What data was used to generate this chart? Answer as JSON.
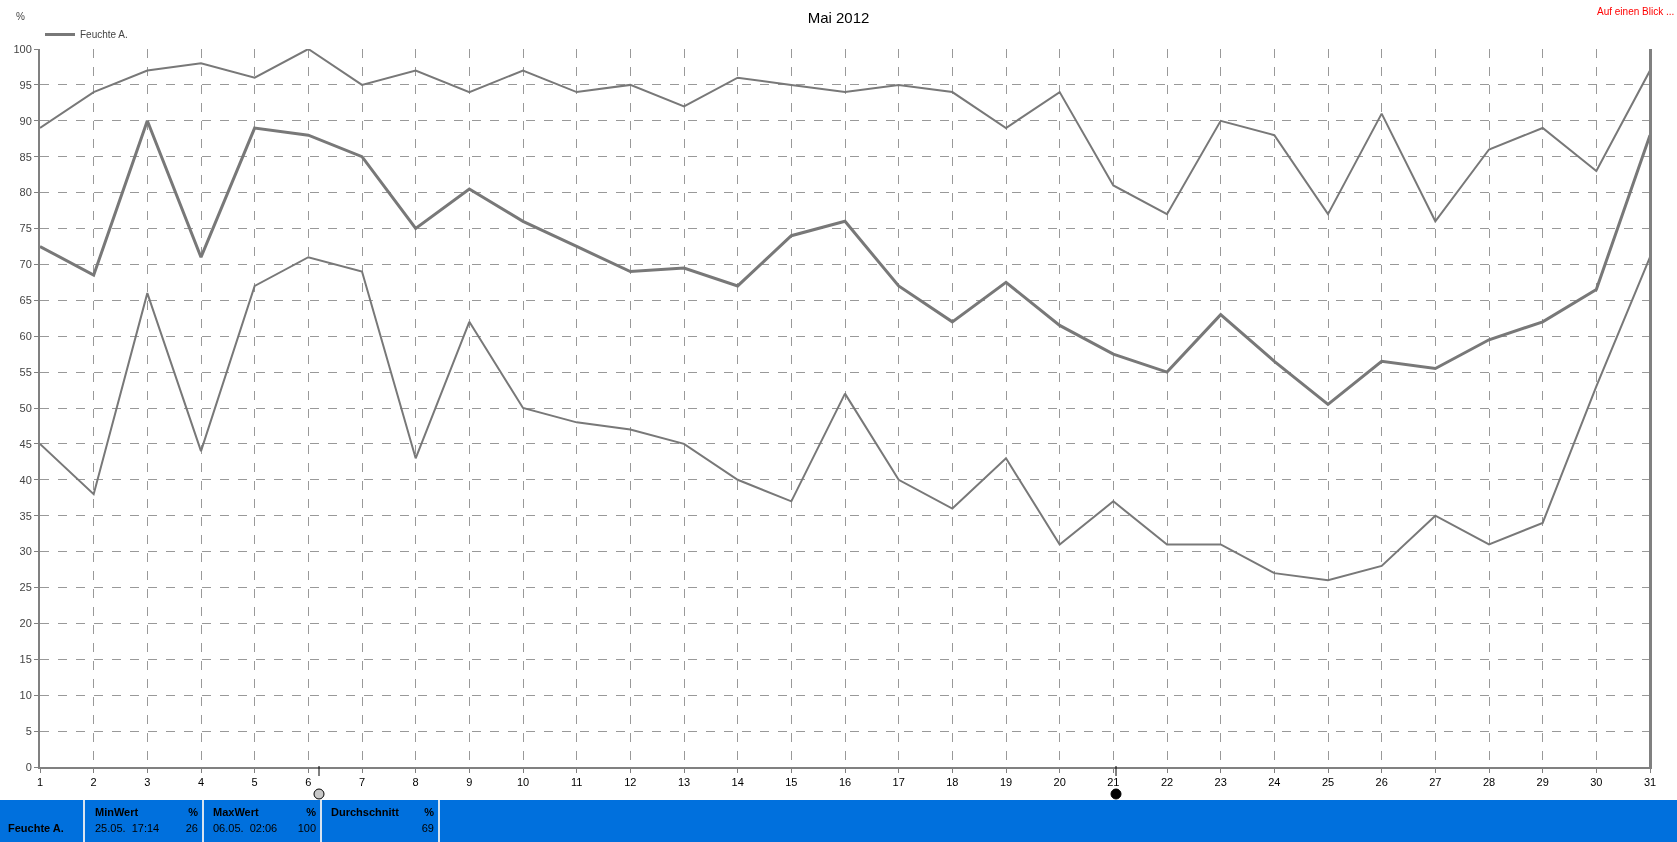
{
  "chart_data": {
    "type": "line",
    "title": "Mai 2012",
    "ylabel": "%",
    "x": [
      1,
      2,
      3,
      4,
      5,
      6,
      7,
      8,
      9,
      10,
      11,
      12,
      13,
      14,
      15,
      16,
      17,
      18,
      19,
      20,
      21,
      22,
      23,
      24,
      25,
      26,
      27,
      28,
      29,
      30,
      31
    ],
    "series": [
      {
        "color": "#787878",
        "values": [
          89,
          94,
          97,
          98,
          96,
          100,
          95,
          97,
          94,
          97,
          94,
          95,
          92,
          96,
          95,
          94,
          95,
          94,
          89,
          94,
          81,
          77,
          90,
          88,
          77,
          91,
          76,
          86,
          89,
          83,
          97
        ]
      },
      {
        "name": "Feuchte A.",
        "color": "#787878",
        "values": [
          72.5,
          68.5,
          90,
          71,
          89,
          88,
          85,
          75,
          80.5,
          76,
          72.5,
          69,
          69.5,
          67,
          74,
          76,
          67,
          62,
          67.5,
          61.5,
          57.5,
          55,
          63,
          56.5,
          50.5,
          56.5,
          55.5,
          59.5,
          62,
          66.5,
          88
        ]
      },
      {
        "color": "#787878",
        "values": [
          45,
          38,
          66,
          44,
          67,
          71,
          69,
          43,
          62,
          50,
          48,
          47,
          45,
          40,
          37,
          52,
          40,
          36,
          43,
          31,
          37,
          31,
          31,
          27,
          26,
          28,
          35,
          31,
          34,
          53,
          71
        ]
      }
    ],
    "xlim": [
      1,
      31
    ],
    "xticks": [
      1,
      2,
      3,
      4,
      5,
      6,
      7,
      8,
      9,
      10,
      11,
      12,
      13,
      14,
      15,
      16,
      17,
      18,
      19,
      20,
      21,
      22,
      23,
      24,
      25,
      26,
      27,
      28,
      29,
      30,
      31
    ],
    "ylim": [
      0,
      100
    ],
    "yticks": [
      0,
      5,
      10,
      15,
      20,
      25,
      30,
      35,
      40,
      45,
      50,
      55,
      60,
      65,
      70,
      75,
      80,
      85,
      90,
      95,
      100
    ],
    "grid": true,
    "legend": "top left",
    "marker": "none",
    "line_style": "solid",
    "annotations": [
      "Auf einen Blick ...",
      "Feuchte A.",
      "MinWert",
      "%",
      "25.05.  17:14",
      "26",
      "MaxWert",
      "%",
      "06.05.  02:06",
      "100",
      "Durchschnitt",
      "%",
      "69"
    ]
  }
}
